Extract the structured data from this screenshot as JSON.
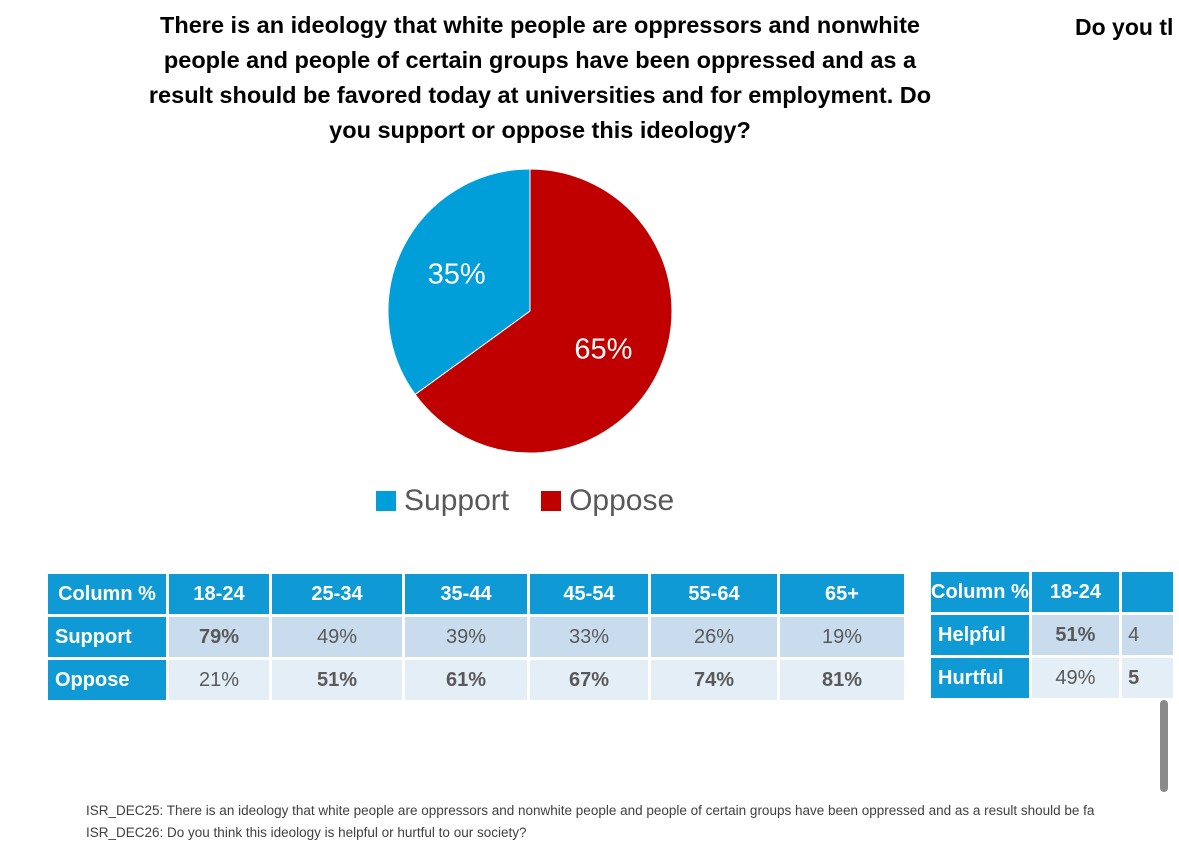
{
  "title_left": "There is an ideology that white people are oppressors and nonwhite people and people of certain groups have been oppressed and as a result should be favored today at universities and for employment. Do you support or oppose this ideology?",
  "title_right": "Do you tl",
  "colors": {
    "support": "#009fd9",
    "oppose": "#c00000",
    "header": "#0f9ad6"
  },
  "chart_data": {
    "type": "pie",
    "title": "There is an ideology that white people are oppressors and nonwhite people and people of certain groups have been oppressed and as a result should be favored today at universities and for employment. Do you support or oppose this ideology?",
    "slices": [
      {
        "label": "Oppose",
        "value": 65,
        "display": "65%",
        "color": "#c00000"
      },
      {
        "label": "Support",
        "value": 35,
        "display": "35%",
        "color": "#009fd9"
      }
    ],
    "legend": [
      "Support",
      "Oppose"
    ],
    "legend_position": "bottom"
  },
  "table1": {
    "header": [
      "Column %",
      "18-24",
      "25-34",
      "35-44",
      "45-54",
      "55-64",
      "65+"
    ],
    "rows": [
      {
        "label": "Support",
        "cells": [
          "79%",
          "49%",
          "39%",
          "33%",
          "26%",
          "19%"
        ]
      },
      {
        "label": "Oppose",
        "cells": [
          "21%",
          "51%",
          "61%",
          "67%",
          "74%",
          "81%"
        ]
      }
    ]
  },
  "table2": {
    "header": [
      "Column %",
      "18-24",
      ""
    ],
    "rows": [
      {
        "label": "Helpful",
        "cells": [
          "51%",
          "4"
        ]
      },
      {
        "label": "Hurtful",
        "cells": [
          "49%",
          "5"
        ]
      }
    ]
  },
  "footnotes": [
    "ISR_DEC25: There is an ideology that white people are oppressors and nonwhite people and people of certain groups have been oppressed and as a result should be fa",
    "ISR_DEC26: Do you think this ideology is helpful or hurtful to our society?"
  ]
}
